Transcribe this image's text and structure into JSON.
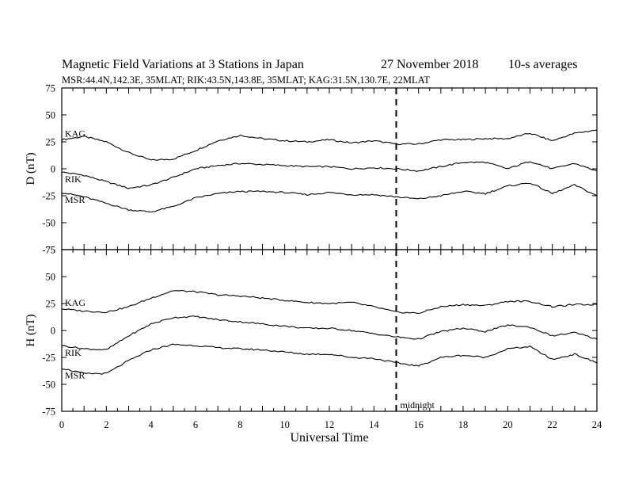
{
  "header": {
    "title": "Magnetic Field Variations at 3 Stations in Japan",
    "date": "27 November 2018",
    "averaging": "10-s averages",
    "stations_line": "MSR:44.4N,142.3E, 35MLAT;  RIK:43.5N,143.8E, 35MLAT;  KAG:31.5N,130.7E, 22MLAT"
  },
  "chart_data": [
    {
      "type": "line",
      "panel": "D",
      "ylabel": "D (nT)",
      "ylim": [
        -75,
        75
      ],
      "yticks": [
        -75,
        -50,
        -25,
        0,
        25,
        50,
        75
      ],
      "xlim": [
        0,
        24
      ],
      "xticks": [
        0,
        2,
        4,
        6,
        8,
        10,
        12,
        14,
        16,
        18,
        20,
        22,
        24
      ],
      "x": [
        0,
        1,
        2,
        3,
        4,
        5,
        6,
        7,
        8,
        9,
        10,
        11,
        12,
        13,
        14,
        15,
        16,
        17,
        18,
        19,
        20,
        21,
        22,
        23,
        24
      ],
      "series": [
        {
          "name": "KAG",
          "values": [
            27,
            30,
            25,
            15,
            8,
            9,
            17,
            26,
            31,
            28,
            26,
            25,
            27,
            24,
            26,
            23,
            23,
            27,
            27,
            28,
            28,
            33,
            26,
            33,
            36
          ]
        },
        {
          "name": "RIK",
          "values": [
            -3,
            -6,
            -12,
            -18,
            -15,
            -8,
            0,
            3,
            5,
            4,
            3,
            2,
            2,
            0,
            1,
            0,
            -2,
            2,
            6,
            6,
            0,
            7,
            0,
            5,
            -2
          ]
        },
        {
          "name": "MSR",
          "values": [
            -22,
            -26,
            -32,
            -38,
            -40,
            -35,
            -27,
            -23,
            -21,
            -21,
            -22,
            -24,
            -22,
            -24,
            -24,
            -26,
            -28,
            -25,
            -21,
            -23,
            -16,
            -13,
            -23,
            -15,
            -25
          ]
        }
      ],
      "annotations": [
        {
          "text": "",
          "x": 15,
          "style": "dashed-vertical"
        }
      ]
    },
    {
      "type": "line",
      "panel": "H",
      "ylabel": "H (nT)",
      "ylim": [
        -75,
        75
      ],
      "yticks": [
        -75,
        -50,
        -25,
        0,
        25,
        50,
        75
      ],
      "xlim": [
        0,
        24
      ],
      "xticks": [
        0,
        2,
        4,
        6,
        8,
        10,
        12,
        14,
        16,
        18,
        20,
        22,
        24
      ],
      "xlabel": "Universal Time",
      "x": [
        0,
        1,
        2,
        3,
        4,
        5,
        6,
        7,
        8,
        9,
        10,
        11,
        12,
        13,
        14,
        15,
        16,
        17,
        18,
        19,
        20,
        21,
        22,
        23,
        24
      ],
      "series": [
        {
          "name": "KAG",
          "values": [
            20,
            18,
            17,
            22,
            30,
            37,
            36,
            33,
            32,
            30,
            28,
            26,
            25,
            26,
            22,
            17,
            16,
            22,
            24,
            23,
            27,
            27,
            22,
            24,
            24
          ]
        },
        {
          "name": "RIK",
          "values": [
            -14,
            -17,
            -18,
            -5,
            6,
            12,
            13,
            10,
            8,
            6,
            4,
            2,
            2,
            0,
            -3,
            -6,
            -8,
            -1,
            2,
            -1,
            5,
            3,
            -5,
            -2,
            -8
          ]
        },
        {
          "name": "MSR",
          "values": [
            -35,
            -40,
            -40,
            -28,
            -18,
            -13,
            -14,
            -16,
            -17,
            -18,
            -20,
            -22,
            -22,
            -25,
            -26,
            -30,
            -33,
            -25,
            -23,
            -25,
            -17,
            -15,
            -27,
            -22,
            -30
          ]
        }
      ],
      "annotations": [
        {
          "text": "midnight",
          "x": 15,
          "style": "dashed-vertical"
        }
      ]
    }
  ]
}
